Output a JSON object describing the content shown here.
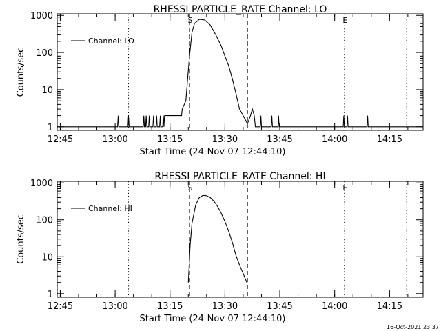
{
  "chart_data": [
    {
      "type": "line",
      "title": "RHESSI PARTICLE_RATE Channel: LO",
      "xlabel": "Start Time (24-Nov-07 12:44:10)",
      "ylabel": "Counts/sec",
      "y_scale": "log",
      "xlim": [
        "12:44:10",
        "14:24:10"
      ],
      "ylim": [
        0.8,
        1100
      ],
      "x_ticks": [
        "12:45",
        "13:00",
        "13:15",
        "13:30",
        "13:45",
        "14:00",
        "14:15"
      ],
      "y_ticks": [
        "1",
        "10",
        "100",
        "1000"
      ],
      "legend": {
        "placement": "top-left",
        "entries": [
          "Channel: LO"
        ]
      },
      "markers": [
        {
          "label": "S",
          "time": "13:20:20",
          "style": "dashed"
        },
        {
          "label": "",
          "time": "13:36:10",
          "style": "dashed"
        },
        {
          "label": "",
          "time": "13:03:40",
          "style": "dotted"
        },
        {
          "label": "E",
          "time": "14:02:40",
          "style": "dotted"
        },
        {
          "label": "",
          "time": "14:19:40",
          "style": "dotted"
        }
      ],
      "series": [
        {
          "x": [
            "12:44:10",
            "13:00:40",
            "13:00:50",
            "13:01:00",
            "13:03:30",
            "13:03:40",
            "13:03:50",
            "13:07:40",
            "13:07:50",
            "13:08:00",
            "13:08:20",
            "13:08:30",
            "13:08:40",
            "13:09:10",
            "13:09:20",
            "13:09:30",
            "13:10:20",
            "13:10:30",
            "13:10:40",
            "13:11:10",
            "13:11:20",
            "13:11:30",
            "13:12:10",
            "13:12:20",
            "13:12:30",
            "13:13:00",
            "13:13:10",
            "13:13:20",
            "13:13:30",
            "13:13:40",
            "13:17:50",
            "13:18:10",
            "13:18:20",
            "13:19:20",
            "13:20:20",
            "13:21:00",
            "13:21:40",
            "13:23:00",
            "13:24:30",
            "13:26:00",
            "13:27:30",
            "13:29:00",
            "13:30:00",
            "13:31:00",
            "13:32:00",
            "13:33:00",
            "13:34:00",
            "13:35:00",
            "13:36:10",
            "13:37:00",
            "13:37:30",
            "13:38:00",
            "13:38:20",
            "13:38:30",
            "13:39:40",
            "13:39:50",
            "13:40:00",
            "13:42:40",
            "13:42:50",
            "13:43:00",
            "13:44:30",
            "13:44:40",
            "13:44:50",
            "14:02:20",
            "14:02:30",
            "14:02:40",
            "14:03:20",
            "14:03:30",
            "14:03:40",
            "14:08:50",
            "14:09:00",
            "14:09:10",
            "14:24:10"
          ],
          "y": [
            1,
            1,
            2,
            1,
            1,
            2,
            1,
            1,
            2,
            1,
            1,
            2,
            1,
            1,
            2,
            1,
            1,
            2,
            1,
            1,
            2,
            1,
            1,
            2,
            1,
            1,
            2,
            1,
            2,
            2,
            2,
            2,
            3,
            5,
            80,
            350,
            600,
            780,
            750,
            550,
            300,
            150,
            80,
            45,
            20,
            8,
            3,
            2,
            1.2,
            2,
            3,
            2,
            1,
            1,
            1,
            2,
            1,
            1,
            2,
            1,
            1,
            2,
            1,
            1,
            2,
            1,
            1,
            2,
            1,
            1,
            2,
            1,
            1
          ]
        }
      ]
    },
    {
      "type": "line",
      "title": "RHESSI PARTICLE_RATE Channel: HI",
      "xlabel": "Start Time (24-Nov-07 12:44:10)",
      "ylabel": "Counts/sec",
      "y_scale": "log",
      "xlim": [
        "12:44:10",
        "14:24:10"
      ],
      "ylim": [
        0.8,
        1100
      ],
      "x_ticks": [
        "12:45",
        "13:00",
        "13:15",
        "13:30",
        "13:45",
        "14:00",
        "14:15"
      ],
      "y_ticks": [
        "1",
        "10",
        "100",
        "1000"
      ],
      "legend": {
        "placement": "top-left",
        "entries": [
          "Channel: HI"
        ]
      },
      "markers": [
        {
          "label": "S",
          "time": "13:20:20",
          "style": "dashed"
        },
        {
          "label": "",
          "time": "13:36:10",
          "style": "dashed"
        },
        {
          "label": "",
          "time": "13:03:40",
          "style": "dotted"
        },
        {
          "label": "E",
          "time": "14:02:40",
          "style": "dotted"
        },
        {
          "label": "",
          "time": "14:19:40",
          "style": "dotted"
        }
      ],
      "series": [
        {
          "x": [
            "13:20:00",
            "13:20:30",
            "13:21:00",
            "13:22:00",
            "13:23:00",
            "13:24:00",
            "13:25:00",
            "13:26:00",
            "13:27:00",
            "13:28:00",
            "13:29:00",
            "13:30:00",
            "13:31:00",
            "13:32:00",
            "13:33:00",
            "13:34:00",
            "13:35:00",
            "13:36:00",
            "13:36:10"
          ],
          "y": [
            2,
            20,
            80,
            250,
            400,
            460,
            450,
            400,
            320,
            230,
            150,
            90,
            50,
            25,
            11,
            6,
            3.5,
            2,
            2
          ]
        }
      ]
    }
  ],
  "footer": {
    "timestamp": "16-Oct-2021 23:37"
  }
}
